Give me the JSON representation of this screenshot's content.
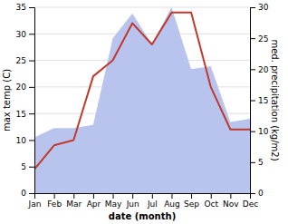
{
  "chart_data": {
    "type": "line",
    "categories": [
      "Jan",
      "Feb",
      "Mar",
      "Apr",
      "May",
      "Jun",
      "Jul",
      "Aug",
      "Sep",
      "Oct",
      "Nov",
      "Dec"
    ],
    "xlabel": "date (month)",
    "ylabel": "max temp (C)",
    "y2label": "med. precipitation (kg/m2)",
    "ylim": [
      0,
      35
    ],
    "yticks": [
      0,
      5,
      10,
      15,
      20,
      25,
      30,
      35
    ],
    "y2lim": [
      0,
      30
    ],
    "y2ticks": [
      0,
      5,
      10,
      15,
      20,
      25,
      30
    ],
    "grid": true,
    "series": [
      {
        "type": "area",
        "axis": "y2",
        "color": "#b8c4ee",
        "values": [
          9.0,
          10.5,
          10.5,
          11.0,
          25.0,
          29.0,
          24.0,
          30.0,
          20.0,
          20.5,
          11.5,
          12.0
        ]
      },
      {
        "type": "line",
        "color": "#c0392b",
        "values": [
          4.5,
          9.0,
          10.0,
          22.0,
          25.0,
          32.0,
          28.0,
          34.0,
          34.0,
          20.0,
          12.0,
          12.0
        ]
      }
    ]
  }
}
